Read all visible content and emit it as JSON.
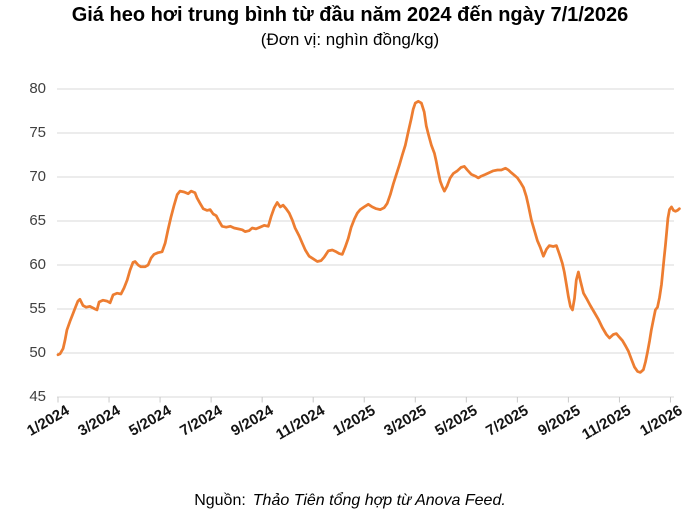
{
  "chart_data": {
    "type": "line",
    "title": "Giá heo hơi trung bình từ đầu năm 2024 đến ngày 7/1/2026",
    "subtitle": "(Đơn vị: nghìn đồng/kg)",
    "source_prefix": "Nguồn:",
    "source_text": "Thảo Tiên tổng hợp từ Anova Feed.",
    "ylim": [
      45,
      80
    ],
    "y_ticks": [
      45,
      50,
      55,
      60,
      65,
      70,
      75,
      80
    ],
    "x_tick_labels": [
      "1/2024",
      "3/2024",
      "5/2024",
      "7/2024",
      "9/2024",
      "11/2024",
      "1/2025",
      "3/2025",
      "5/2025",
      "7/2025",
      "9/2025",
      "11/2025",
      "1/2026"
    ],
    "x_tick_months": [
      0,
      2,
      4,
      6,
      8,
      10,
      12,
      14,
      16,
      18,
      20,
      22,
      24
    ],
    "grid": true,
    "legend": false,
    "line_color": "#ED7D31",
    "grid_color": "#D9D9D9",
    "tick_color": "#C8C8C8",
    "series": [
      {
        "name": "Giá heo hơi trung bình (nghìn đồng/kg)",
        "x_unit": "months since 1/2024",
        "points": [
          [
            0,
            49.8
          ],
          [
            0.08,
            49.9
          ],
          [
            0.2,
            50.5
          ],
          [
            0.27,
            51.4
          ],
          [
            0.35,
            52.6
          ],
          [
            0.47,
            53.6
          ],
          [
            0.59,
            54.5
          ],
          [
            0.67,
            55.1
          ],
          [
            0.78,
            55.9
          ],
          [
            0.86,
            56.1
          ],
          [
            0.98,
            55.4
          ],
          [
            1.1,
            55.2
          ],
          [
            1.25,
            55.3
          ],
          [
            1.45,
            55.0
          ],
          [
            1.53,
            54.9
          ],
          [
            1.61,
            55.8
          ],
          [
            1.76,
            56.0
          ],
          [
            1.92,
            55.9
          ],
          [
            2.04,
            55.7
          ],
          [
            2.16,
            56.6
          ],
          [
            2.31,
            56.8
          ],
          [
            2.47,
            56.7
          ],
          [
            2.59,
            57.4
          ],
          [
            2.71,
            58.3
          ],
          [
            2.82,
            59.4
          ],
          [
            2.94,
            60.3
          ],
          [
            3.02,
            60.4
          ],
          [
            3.14,
            60.0
          ],
          [
            3.25,
            59.8
          ],
          [
            3.41,
            59.8
          ],
          [
            3.53,
            60.0
          ],
          [
            3.65,
            60.8
          ],
          [
            3.76,
            61.2
          ],
          [
            3.92,
            61.4
          ],
          [
            4.08,
            61.5
          ],
          [
            4.2,
            62.5
          ],
          [
            4.31,
            64.0
          ],
          [
            4.43,
            65.5
          ],
          [
            4.55,
            66.8
          ],
          [
            4.67,
            68.0
          ],
          [
            4.78,
            68.4
          ],
          [
            4.94,
            68.3
          ],
          [
            5.1,
            68.1
          ],
          [
            5.22,
            68.4
          ],
          [
            5.37,
            68.2
          ],
          [
            5.45,
            67.6
          ],
          [
            5.57,
            67.0
          ],
          [
            5.69,
            66.4
          ],
          [
            5.84,
            66.2
          ],
          [
            5.96,
            66.3
          ],
          [
            6.08,
            65.8
          ],
          [
            6.2,
            65.6
          ],
          [
            6.31,
            65.0
          ],
          [
            6.43,
            64.4
          ],
          [
            6.59,
            64.3
          ],
          [
            6.75,
            64.4
          ],
          [
            6.9,
            64.2
          ],
          [
            7.06,
            64.1
          ],
          [
            7.22,
            64.0
          ],
          [
            7.33,
            63.8
          ],
          [
            7.49,
            63.9
          ],
          [
            7.61,
            64.2
          ],
          [
            7.76,
            64.1
          ],
          [
            7.92,
            64.3
          ],
          [
            8.08,
            64.5
          ],
          [
            8.24,
            64.4
          ],
          [
            8.35,
            65.5
          ],
          [
            8.47,
            66.5
          ],
          [
            8.59,
            67.1
          ],
          [
            8.71,
            66.6
          ],
          [
            8.82,
            66.8
          ],
          [
            8.94,
            66.4
          ],
          [
            9.06,
            65.9
          ],
          [
            9.18,
            65.1
          ],
          [
            9.29,
            64.2
          ],
          [
            9.45,
            63.3
          ],
          [
            9.57,
            62.5
          ],
          [
            9.69,
            61.7
          ],
          [
            9.84,
            61.0
          ],
          [
            10,
            60.7
          ],
          [
            10.16,
            60.4
          ],
          [
            10.31,
            60.5
          ],
          [
            10.43,
            60.9
          ],
          [
            10.59,
            61.6
          ],
          [
            10.75,
            61.7
          ],
          [
            10.9,
            61.5
          ],
          [
            11.02,
            61.3
          ],
          [
            11.14,
            61.2
          ],
          [
            11.25,
            62.0
          ],
          [
            11.37,
            63.0
          ],
          [
            11.49,
            64.3
          ],
          [
            11.61,
            65.2
          ],
          [
            11.73,
            65.9
          ],
          [
            11.84,
            66.3
          ],
          [
            12,
            66.6
          ],
          [
            12.16,
            66.9
          ],
          [
            12.31,
            66.6
          ],
          [
            12.47,
            66.4
          ],
          [
            12.63,
            66.3
          ],
          [
            12.78,
            66.5
          ],
          [
            12.9,
            67.0
          ],
          [
            13.02,
            68.0
          ],
          [
            13.14,
            69.2
          ],
          [
            13.25,
            70.2
          ],
          [
            13.37,
            71.3
          ],
          [
            13.49,
            72.5
          ],
          [
            13.61,
            73.6
          ],
          [
            13.73,
            75.2
          ],
          [
            13.84,
            76.6
          ],
          [
            13.92,
            77.7
          ],
          [
            14,
            78.4
          ],
          [
            14.12,
            78.6
          ],
          [
            14.24,
            78.4
          ],
          [
            14.35,
            77.4
          ],
          [
            14.43,
            75.8
          ],
          [
            14.51,
            74.9
          ],
          [
            14.63,
            73.6
          ],
          [
            14.75,
            72.7
          ],
          [
            14.82,
            71.8
          ],
          [
            14.9,
            70.6
          ],
          [
            14.98,
            69.5
          ],
          [
            15.06,
            68.9
          ],
          [
            15.14,
            68.4
          ],
          [
            15.25,
            69.0
          ],
          [
            15.37,
            69.9
          ],
          [
            15.49,
            70.4
          ],
          [
            15.65,
            70.7
          ],
          [
            15.8,
            71.1
          ],
          [
            15.92,
            71.2
          ],
          [
            16.04,
            70.8
          ],
          [
            16.2,
            70.3
          ],
          [
            16.35,
            70.1
          ],
          [
            16.47,
            69.9
          ],
          [
            16.59,
            70.1
          ],
          [
            16.75,
            70.3
          ],
          [
            16.9,
            70.5
          ],
          [
            17.06,
            70.7
          ],
          [
            17.22,
            70.8
          ],
          [
            17.37,
            70.8
          ],
          [
            17.53,
            71.0
          ],
          [
            17.65,
            70.8
          ],
          [
            17.76,
            70.5
          ],
          [
            17.88,
            70.2
          ],
          [
            18,
            69.9
          ],
          [
            18.12,
            69.4
          ],
          [
            18.24,
            68.8
          ],
          [
            18.35,
            67.8
          ],
          [
            18.43,
            66.8
          ],
          [
            18.55,
            65.1
          ],
          [
            18.67,
            63.9
          ],
          [
            18.78,
            62.8
          ],
          [
            18.9,
            62.0
          ],
          [
            19.02,
            61.0
          ],
          [
            19.14,
            61.8
          ],
          [
            19.25,
            62.2
          ],
          [
            19.41,
            62.1
          ],
          [
            19.53,
            62.2
          ],
          [
            19.65,
            61.2
          ],
          [
            19.76,
            60.2
          ],
          [
            19.84,
            59.2
          ],
          [
            19.92,
            57.8
          ],
          [
            20,
            56.4
          ],
          [
            20.08,
            55.3
          ],
          [
            20.16,
            54.9
          ],
          [
            20.24,
            56.2
          ],
          [
            20.31,
            58.3
          ],
          [
            20.39,
            59.2
          ],
          [
            20.47,
            58.2
          ],
          [
            20.59,
            56.8
          ],
          [
            20.71,
            56.2
          ],
          [
            20.86,
            55.4
          ],
          [
            21.02,
            54.6
          ],
          [
            21.18,
            53.8
          ],
          [
            21.33,
            52.9
          ],
          [
            21.49,
            52.1
          ],
          [
            21.61,
            51.7
          ],
          [
            21.76,
            52.1
          ],
          [
            21.88,
            52.2
          ],
          [
            22,
            51.8
          ],
          [
            22.12,
            51.4
          ],
          [
            22.24,
            50.8
          ],
          [
            22.35,
            50.2
          ],
          [
            22.47,
            49.3
          ],
          [
            22.59,
            48.4
          ],
          [
            22.71,
            47.9
          ],
          [
            22.82,
            47.8
          ],
          [
            22.94,
            48.1
          ],
          [
            23.02,
            49.0
          ],
          [
            23.1,
            50.1
          ],
          [
            23.18,
            51.4
          ],
          [
            23.25,
            52.6
          ],
          [
            23.33,
            53.8
          ],
          [
            23.41,
            54.9
          ],
          [
            23.49,
            55.2
          ],
          [
            23.57,
            56.3
          ],
          [
            23.65,
            57.8
          ],
          [
            23.7,
            59.3
          ],
          [
            23.75,
            60.8
          ],
          [
            23.8,
            62.2
          ],
          [
            23.85,
            63.8
          ],
          [
            23.9,
            65.3
          ],
          [
            23.96,
            66.3
          ],
          [
            24.04,
            66.6
          ],
          [
            24.12,
            66.2
          ],
          [
            24.2,
            66.1
          ],
          [
            24.27,
            66.2
          ],
          [
            24.35,
            66.4
          ]
        ]
      }
    ]
  }
}
